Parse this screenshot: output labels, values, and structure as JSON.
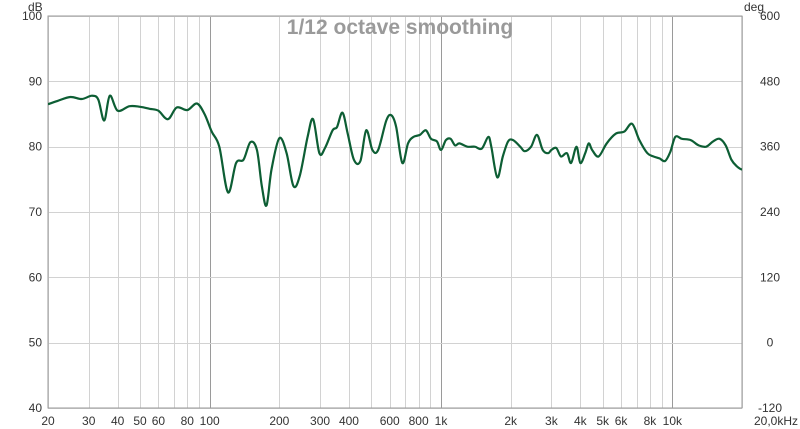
{
  "chart_data": {
    "type": "line",
    "title": "1/12 octave smoothing",
    "x_scale": "log",
    "xlim": [
      20,
      20000
    ],
    "ylim": [
      40,
      100
    ],
    "y_right_lim": [
      -120,
      600
    ],
    "ylabel": "dB",
    "y_right_label": "deg",
    "y_ticks": [
      "40",
      "50",
      "60",
      "70",
      "80",
      "90",
      "100"
    ],
    "y_right_ticks": [
      "-120",
      "0",
      "120",
      "240",
      "360",
      "480",
      "600"
    ],
    "x_ticks": [
      {
        "value": 20,
        "label": "20"
      },
      {
        "value": 30,
        "label": "30"
      },
      {
        "value": 40,
        "label": "40"
      },
      {
        "value": 50,
        "label": "50"
      },
      {
        "value": 60,
        "label": "60"
      },
      {
        "value": 80,
        "label": "80"
      },
      {
        "value": 100,
        "label": "100"
      },
      {
        "value": 200,
        "label": "200"
      },
      {
        "value": 300,
        "label": "300"
      },
      {
        "value": 400,
        "label": "400"
      },
      {
        "value": 600,
        "label": "600"
      },
      {
        "value": 800,
        "label": "800"
      },
      {
        "value": 1000,
        "label": "1k"
      },
      {
        "value": 2000,
        "label": "2k"
      },
      {
        "value": 3000,
        "label": "3k"
      },
      {
        "value": 4000,
        "label": "4k"
      },
      {
        "value": 5000,
        "label": "5k"
      },
      {
        "value": 6000,
        "label": "6k"
      },
      {
        "value": 8000,
        "label": "8k"
      },
      {
        "value": 10000,
        "label": "10k"
      },
      {
        "value": 20000,
        "label": "20,0kHz"
      }
    ],
    "grid": true,
    "series": [
      {
        "color": "#0d5e34",
        "points": [
          [
            20,
            86.5
          ],
          [
            22,
            87.0
          ],
          [
            25,
            87.6
          ],
          [
            28,
            87.3
          ],
          [
            31,
            87.8
          ],
          [
            33,
            87.2
          ],
          [
            35,
            84.0
          ],
          [
            37,
            87.8
          ],
          [
            40,
            85.5
          ],
          [
            45,
            86.2
          ],
          [
            50,
            86.1
          ],
          [
            55,
            85.8
          ],
          [
            60,
            85.5
          ],
          [
            66,
            84.2
          ],
          [
            72,
            86.0
          ],
          [
            80,
            85.6
          ],
          [
            88,
            86.6
          ],
          [
            95,
            85.0
          ],
          [
            102,
            82.3
          ],
          [
            110,
            80.0
          ],
          [
            120,
            73.0
          ],
          [
            130,
            77.5
          ],
          [
            140,
            78.0
          ],
          [
            150,
            80.7
          ],
          [
            160,
            79.5
          ],
          [
            168,
            74.0
          ],
          [
            176,
            71.0
          ],
          [
            185,
            76.5
          ],
          [
            200,
            81.3
          ],
          [
            215,
            79.0
          ],
          [
            230,
            74.0
          ],
          [
            245,
            75.5
          ],
          [
            265,
            81.5
          ],
          [
            280,
            84.2
          ],
          [
            298,
            79.0
          ],
          [
            315,
            79.8
          ],
          [
            340,
            82.5
          ],
          [
            355,
            83.0
          ],
          [
            375,
            85.2
          ],
          [
            395,
            82.0
          ],
          [
            420,
            78.0
          ],
          [
            448,
            77.8
          ],
          [
            475,
            82.5
          ],
          [
            505,
            79.5
          ],
          [
            535,
            79.5
          ],
          [
            580,
            84.0
          ],
          [
            610,
            84.8
          ],
          [
            640,
            83.0
          ],
          [
            680,
            77.5
          ],
          [
            720,
            80.5
          ],
          [
            760,
            81.5
          ],
          [
            810,
            81.8
          ],
          [
            860,
            82.5
          ],
          [
            905,
            81.2
          ],
          [
            960,
            80.8
          ],
          [
            1000,
            79.5
          ],
          [
            1050,
            81.0
          ],
          [
            1100,
            81.2
          ],
          [
            1150,
            80.2
          ],
          [
            1200,
            80.5
          ],
          [
            1300,
            80.0
          ],
          [
            1400,
            80.0
          ],
          [
            1500,
            79.7
          ],
          [
            1600,
            81.5
          ],
          [
            1650,
            80.0
          ],
          [
            1750,
            75.3
          ],
          [
            1850,
            78.5
          ],
          [
            1950,
            80.8
          ],
          [
            2050,
            81.0
          ],
          [
            2200,
            80.0
          ],
          [
            2300,
            79.3
          ],
          [
            2450,
            80.0
          ],
          [
            2600,
            81.8
          ],
          [
            2750,
            79.5
          ],
          [
            2900,
            79.0
          ],
          [
            3000,
            79.5
          ],
          [
            3150,
            79.8
          ],
          [
            3300,
            78.5
          ],
          [
            3500,
            79.0
          ],
          [
            3650,
            77.5
          ],
          [
            3850,
            80.0
          ],
          [
            4000,
            77.5
          ],
          [
            4200,
            79.0
          ],
          [
            4350,
            80.5
          ],
          [
            4500,
            79.5
          ],
          [
            4800,
            78.5
          ],
          [
            5200,
            80.5
          ],
          [
            5700,
            82.0
          ],
          [
            6200,
            82.3
          ],
          [
            6700,
            83.5
          ],
          [
            7200,
            81.0
          ],
          [
            7800,
            79.0
          ],
          [
            8300,
            78.5
          ],
          [
            8800,
            78.2
          ],
          [
            9300,
            77.8
          ],
          [
            9800,
            79.2
          ],
          [
            10300,
            81.5
          ],
          [
            11000,
            81.2
          ],
          [
            12000,
            81.0
          ],
          [
            13000,
            80.2
          ],
          [
            14000,
            80.0
          ],
          [
            15000,
            80.8
          ],
          [
            16000,
            81.2
          ],
          [
            17000,
            80.2
          ],
          [
            18000,
            78.0
          ],
          [
            19000,
            77.0
          ],
          [
            20000,
            76.5
          ],
          [
            21000,
            76.8
          ]
        ]
      }
    ]
  }
}
